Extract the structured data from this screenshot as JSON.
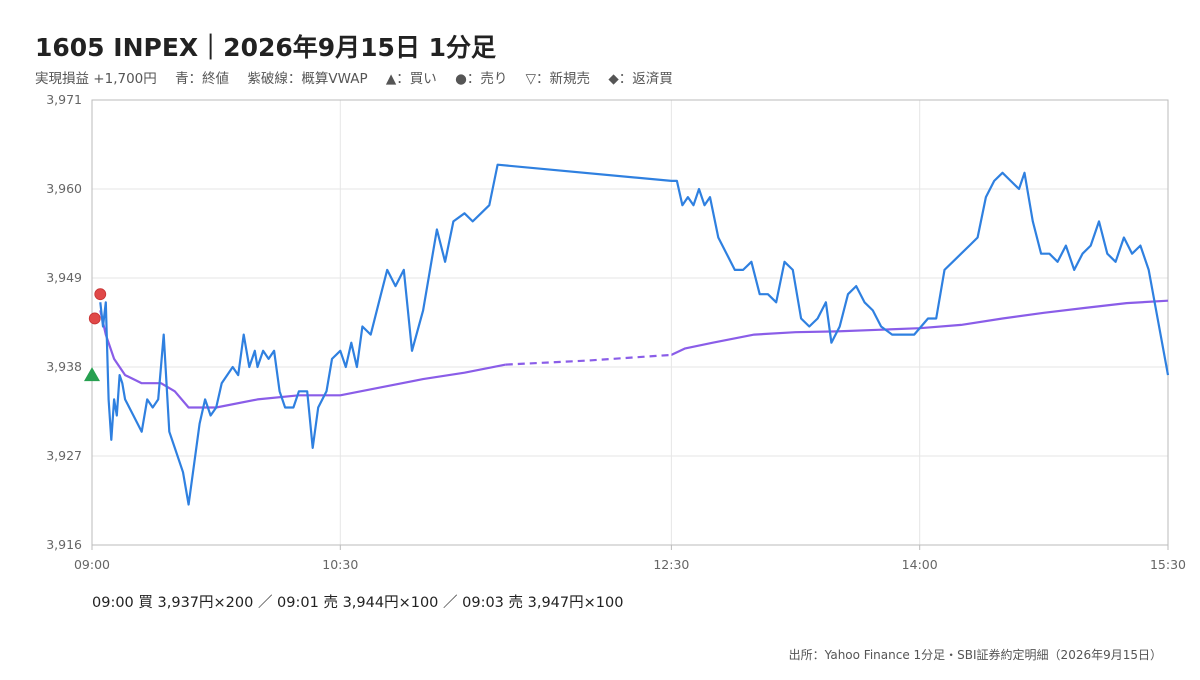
{
  "title": "1605 INPEX｜2026年9月15日 1分足",
  "legend": [
    "実現損益 +1,700円",
    "青：終値",
    "紫破線：概算VWAP",
    "▲：買い",
    "●：売り",
    "▽：新規売",
    "◆：返済買"
  ],
  "trades_text": "09:00 買 3,937円×200 ／ 09:01 売 3,944円×100 ／ 09:03 売 3,947円×100",
  "source": "出所：Yahoo Finance 1分足・SBI証券約定明細（2026年9月15日）",
  "colors": {
    "price": "#2f80e0",
    "vwap": "#8a5de8",
    "buy": "#27a050",
    "sell": "#e04848",
    "grid": "#e6e6e6"
  },
  "chart_data": {
    "type": "line",
    "title": "",
    "xlabel": "",
    "ylabel": "",
    "ylim": [
      3916,
      3971
    ],
    "yticks": [
      3916,
      3927,
      3938,
      3949,
      3960,
      3971
    ],
    "ytick_labels": [
      "3,916",
      "3,927",
      "3,938",
      "3,949",
      "3,960",
      "3,971"
    ],
    "xlim": [
      "09:00",
      "15:30"
    ],
    "xticks": [
      "09:00",
      "10:30",
      "12:30",
      "14:00",
      "15:30"
    ],
    "grid": true,
    "series": [
      {
        "name": "終値",
        "points": [
          [
            "09:03",
            3946
          ],
          [
            "09:04",
            3943
          ],
          [
            "09:05",
            3946
          ],
          [
            "09:06",
            3934
          ],
          [
            "09:07",
            3929
          ],
          [
            "09:08",
            3934
          ],
          [
            "09:09",
            3932
          ],
          [
            "09:10",
            3937
          ],
          [
            "09:11",
            3936
          ],
          [
            "09:12",
            3934
          ],
          [
            "09:15",
            3932
          ],
          [
            "09:18",
            3930
          ],
          [
            "09:20",
            3934
          ],
          [
            "09:22",
            3933
          ],
          [
            "09:24",
            3934
          ],
          [
            "09:26",
            3942
          ],
          [
            "09:28",
            3930
          ],
          [
            "09:30",
            3928
          ],
          [
            "09:33",
            3925
          ],
          [
            "09:35",
            3921
          ],
          [
            "09:37",
            3926
          ],
          [
            "09:39",
            3931
          ],
          [
            "09:41",
            3934
          ],
          [
            "09:43",
            3932
          ],
          [
            "09:45",
            3933
          ],
          [
            "09:47",
            3936
          ],
          [
            "09:49",
            3937
          ],
          [
            "09:51",
            3938
          ],
          [
            "09:53",
            3937
          ],
          [
            "09:55",
            3942
          ],
          [
            "09:57",
            3938
          ],
          [
            "09:59",
            3940
          ],
          [
            "10:00",
            3938
          ],
          [
            "10:02",
            3940
          ],
          [
            "10:04",
            3939
          ],
          [
            "10:06",
            3940
          ],
          [
            "10:08",
            3935
          ],
          [
            "10:10",
            3933
          ],
          [
            "10:13",
            3933
          ],
          [
            "10:15",
            3935
          ],
          [
            "10:18",
            3935
          ],
          [
            "10:20",
            3928
          ],
          [
            "10:22",
            3933
          ],
          [
            "10:25",
            3935
          ],
          [
            "10:27",
            3939
          ],
          [
            "10:30",
            3940
          ],
          [
            "10:32",
            3938
          ],
          [
            "10:34",
            3941
          ],
          [
            "10:36",
            3938
          ],
          [
            "10:38",
            3943
          ],
          [
            "10:41",
            3942
          ],
          [
            "10:44",
            3946
          ],
          [
            "10:47",
            3950
          ],
          [
            "10:50",
            3948
          ],
          [
            "10:53",
            3950
          ],
          [
            "10:56",
            3940
          ],
          [
            "11:00",
            3945
          ],
          [
            "11:05",
            3955
          ],
          [
            "11:08",
            3951
          ],
          [
            "11:11",
            3956
          ],
          [
            "11:15",
            3957
          ],
          [
            "11:18",
            3956
          ],
          [
            "11:21",
            3957
          ],
          [
            "11:24",
            3958
          ],
          [
            "11:27",
            3963
          ],
          [
            "12:30",
            3961
          ],
          [
            "12:32",
            3961
          ],
          [
            "12:34",
            3958
          ],
          [
            "12:36",
            3959
          ],
          [
            "12:38",
            3958
          ],
          [
            "12:40",
            3960
          ],
          [
            "12:42",
            3958
          ],
          [
            "12:44",
            3959
          ],
          [
            "12:47",
            3954
          ],
          [
            "12:50",
            3952
          ],
          [
            "12:53",
            3950
          ],
          [
            "12:56",
            3950
          ],
          [
            "12:59",
            3951
          ],
          [
            "13:02",
            3947
          ],
          [
            "13:05",
            3947
          ],
          [
            "13:08",
            3946
          ],
          [
            "13:11",
            3951
          ],
          [
            "13:14",
            3950
          ],
          [
            "13:17",
            3944
          ],
          [
            "13:20",
            3943
          ],
          [
            "13:23",
            3944
          ],
          [
            "13:26",
            3946
          ],
          [
            "13:28",
            3941
          ],
          [
            "13:31",
            3943
          ],
          [
            "13:34",
            3947
          ],
          [
            "13:37",
            3948
          ],
          [
            "13:40",
            3946
          ],
          [
            "13:43",
            3945
          ],
          [
            "13:46",
            3943
          ],
          [
            "13:50",
            3942
          ],
          [
            "13:55",
            3942
          ],
          [
            "13:58",
            3942
          ],
          [
            "14:03",
            3944
          ],
          [
            "14:06",
            3944
          ],
          [
            "14:09",
            3950
          ],
          [
            "14:12",
            3951
          ],
          [
            "14:15",
            3952
          ],
          [
            "14:18",
            3953
          ],
          [
            "14:21",
            3954
          ],
          [
            "14:24",
            3959
          ],
          [
            "14:27",
            3961
          ],
          [
            "14:30",
            3962
          ],
          [
            "14:33",
            3961
          ],
          [
            "14:36",
            3960
          ],
          [
            "14:38",
            3962
          ],
          [
            "14:41",
            3956
          ],
          [
            "14:44",
            3952
          ],
          [
            "14:47",
            3952
          ],
          [
            "14:50",
            3951
          ],
          [
            "14:53",
            3953
          ],
          [
            "14:56",
            3950
          ],
          [
            "14:59",
            3952
          ],
          [
            "15:02",
            3953
          ],
          [
            "15:05",
            3956
          ],
          [
            "15:08",
            3952
          ],
          [
            "15:11",
            3951
          ],
          [
            "15:14",
            3954
          ],
          [
            "15:17",
            3952
          ],
          [
            "15:20",
            3953
          ],
          [
            "15:23",
            3950
          ],
          [
            "15:30",
            3937
          ]
        ]
      },
      {
        "name": "概算VWAP",
        "points": [
          [
            "09:03",
            3945
          ],
          [
            "09:05",
            3942
          ],
          [
            "09:08",
            3939
          ],
          [
            "09:12",
            3937
          ],
          [
            "09:18",
            3936
          ],
          [
            "09:25",
            3936
          ],
          [
            "09:30",
            3935
          ],
          [
            "09:35",
            3933
          ],
          [
            "09:45",
            3933
          ],
          [
            "10:00",
            3934
          ],
          [
            "10:15",
            3934.5
          ],
          [
            "10:30",
            3934.5
          ],
          [
            "10:45",
            3935.5
          ],
          [
            "11:00",
            3936.5
          ],
          [
            "11:15",
            3937.3
          ],
          [
            "11:30",
            3938.3
          ],
          [
            "12:00",
            3938.8
          ],
          [
            "12:30",
            3939.5
          ],
          [
            "12:35",
            3940.3
          ],
          [
            "12:45",
            3941
          ],
          [
            "13:00",
            3942
          ],
          [
            "13:15",
            3942.3
          ],
          [
            "13:30",
            3942.4
          ],
          [
            "13:45",
            3942.6
          ],
          [
            "14:00",
            3942.8
          ],
          [
            "14:15",
            3943.2
          ],
          [
            "14:30",
            3944
          ],
          [
            "14:45",
            3944.7
          ],
          [
            "15:00",
            3945.3
          ],
          [
            "15:15",
            3945.9
          ],
          [
            "15:30",
            3946.2
          ]
        ]
      }
    ],
    "markers": [
      {
        "type": "buy",
        "time": "09:00",
        "price": 3937
      },
      {
        "type": "sell",
        "time": "09:01",
        "price": 3944
      },
      {
        "type": "sell",
        "time": "09:03",
        "price": 3947
      }
    ]
  }
}
